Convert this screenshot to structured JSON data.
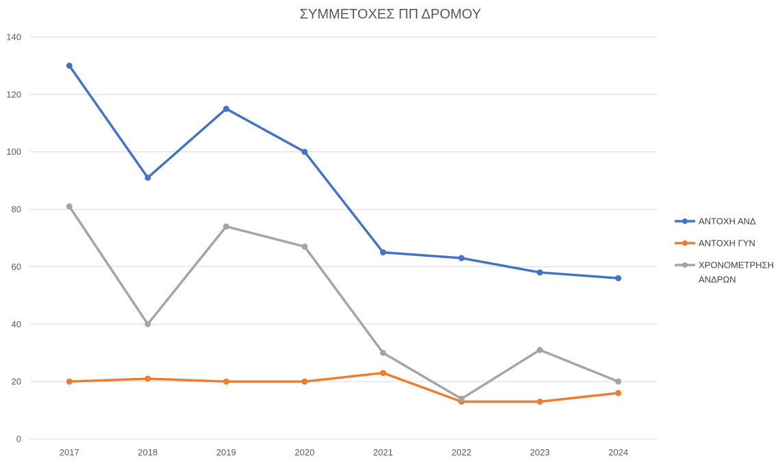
{
  "chart_data": {
    "type": "line",
    "title": "ΣΥΜΜΕΤΟΧΕΣ ΠΠ ΔΡΟΜΟΥ",
    "xlabel": "",
    "ylabel": "",
    "categories": [
      "2017",
      "2018",
      "2019",
      "2020",
      "2021",
      "2022",
      "2023",
      "2024"
    ],
    "ylim": [
      0,
      140
    ],
    "yticks": [
      0,
      20,
      40,
      60,
      80,
      100,
      120,
      140
    ],
    "grid": true,
    "legend_position": "right",
    "series": [
      {
        "name": "ΑΝΤΟΧΗ ΑΝΔ",
        "name_lines": [
          "ΑΝΤΟΧΗ ΑΝΔ"
        ],
        "color": "#4472c4",
        "values": [
          130,
          91,
          115,
          100,
          65,
          63,
          58,
          56
        ]
      },
      {
        "name": "ΑΝΤΟΧΗ ΓΥΝ",
        "name_lines": [
          "ΑΝΤΟΧΗ ΓΥΝ"
        ],
        "color": "#ed7d31",
        "values": [
          20,
          21,
          20,
          20,
          23,
          13,
          13,
          16
        ]
      },
      {
        "name": "ΧΡΟΝΟΜΕΤΡΗΣΗ ΑΝΔΡΩΝ",
        "name_lines": [
          "ΧΡΟΝΟΜΕΤΡΗΣΗ",
          "ΑΝΔΡΩΝ"
        ],
        "color": "#a5a5a5",
        "values": [
          81,
          40,
          74,
          67,
          30,
          14,
          31,
          20
        ]
      }
    ]
  }
}
